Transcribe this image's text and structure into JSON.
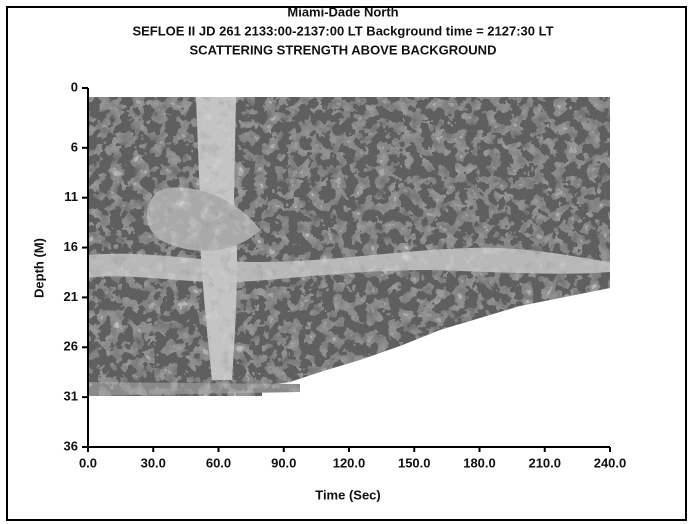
{
  "chart_data": {
    "type": "contour",
    "title": "Miami-Dade North",
    "subtitle": "SEFLOE II JD 261 2133:00-2137:00 LT Background time = 2127:30 LT",
    "subtitle2": "SCATTERING STRENGTH ABOVE BACKGROUND",
    "xlabel": "Time (Sec)",
    "ylabel": "Depth (M)",
    "xlim": [
      0,
      240
    ],
    "xticks": [
      {
        "value": 0,
        "label": "0.0"
      },
      {
        "value": 30,
        "label": "30.0"
      },
      {
        "value": 60,
        "label": "60.0"
      },
      {
        "value": 90,
        "label": "90.0"
      },
      {
        "value": 120,
        "label": "120.0"
      },
      {
        "value": 150,
        "label": "150.0"
      },
      {
        "value": 180,
        "label": "180.0"
      },
      {
        "value": 210,
        "label": "210.0"
      },
      {
        "value": 240,
        "label": "240.0"
      }
    ],
    "ylim": [
      36,
      0
    ],
    "yticks": [
      0,
      6,
      11,
      16,
      21,
      26,
      31,
      36
    ]
  }
}
